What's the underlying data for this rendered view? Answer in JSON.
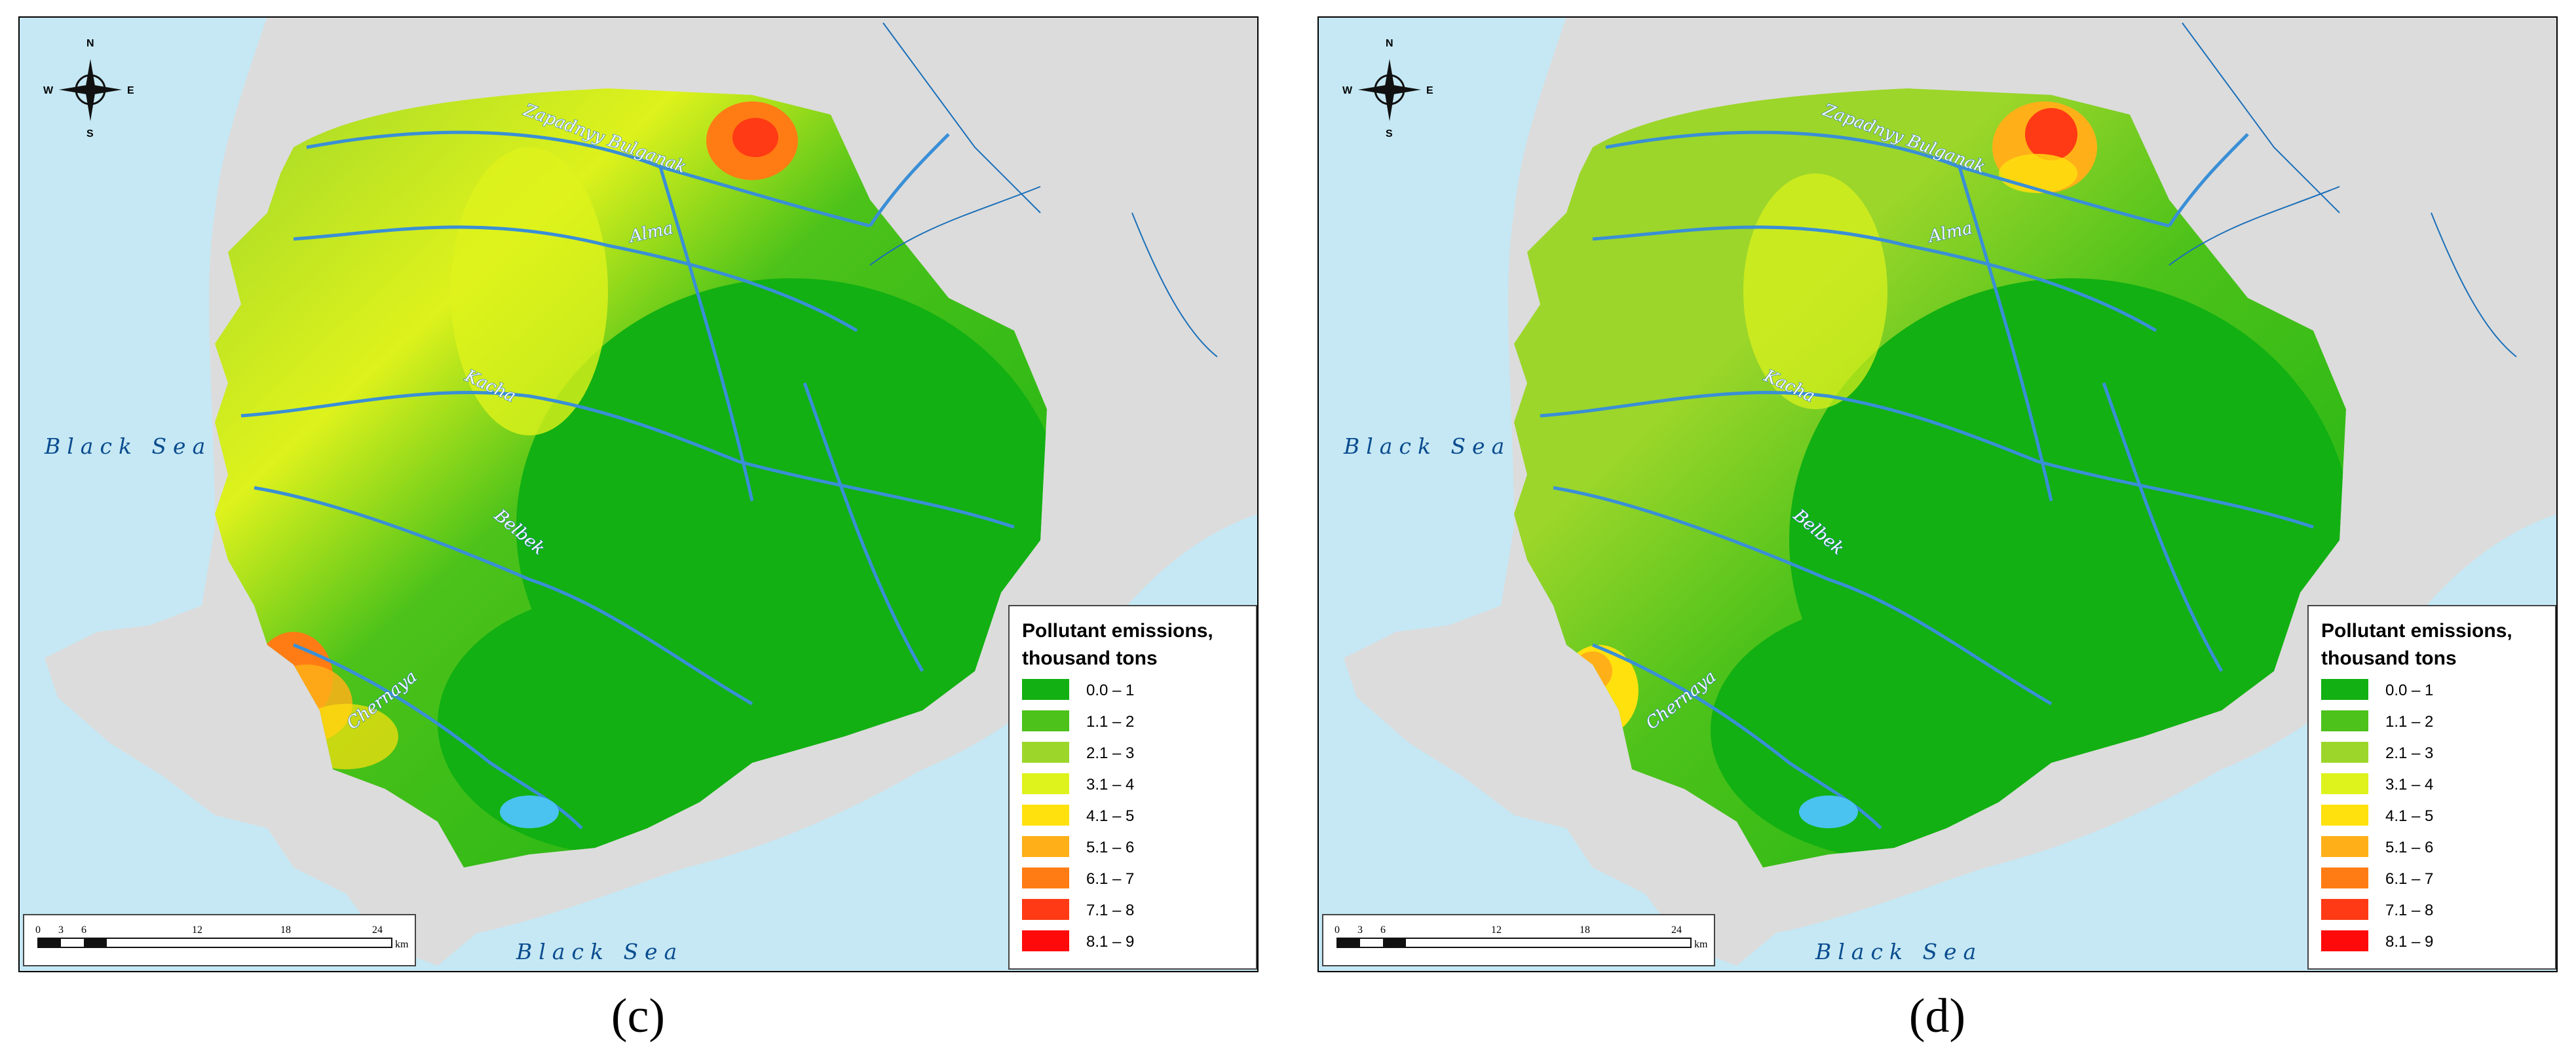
{
  "panels": [
    {
      "caption": "(c)",
      "sea_west": "Black Sea",
      "sea_south": "Black Sea",
      "rivers": [
        "Zapadnyy Bulganak",
        "Alma",
        "Kacha",
        "Belbek",
        "Chernaya"
      ],
      "compass": {
        "n": "N",
        "s": "S",
        "e": "E",
        "w": "W"
      },
      "scale_ticks": [
        "0",
        "3",
        "6",
        "12",
        "18",
        "24"
      ],
      "scale_unit": "km",
      "legend": {
        "title_line1": "Pollutant emissions,",
        "title_line2": "thousand tons",
        "items": [
          {
            "label": "0.0 – 1",
            "color": "#12b012"
          },
          {
            "label": "1.1 – 2",
            "color": "#4cc21a"
          },
          {
            "label": "2.1 – 3",
            "color": "#9cd62a"
          },
          {
            "label": "3.1 – 4",
            "color": "#def21c"
          },
          {
            "label": "4.1 – 5",
            "color": "#ffe10e"
          },
          {
            "label": "5.1 – 6",
            "color": "#ffb018"
          },
          {
            "label": "6.1 – 7",
            "color": "#ff7c14"
          },
          {
            "label": "7.1 – 8",
            "color": "#ff3a14"
          },
          {
            "label": "8.1 – 9",
            "color": "#ff0a0a"
          }
        ]
      }
    },
    {
      "caption": "(d)",
      "sea_west": "Black Sea",
      "sea_south": "Black Sea",
      "rivers": [
        "Zapadnyy Bulganak",
        "Alma",
        "Kacha",
        "Belbek",
        "Chernaya"
      ],
      "compass": {
        "n": "N",
        "s": "S",
        "e": "E",
        "w": "W"
      },
      "scale_ticks": [
        "0",
        "3",
        "6",
        "12",
        "18",
        "24"
      ],
      "scale_unit": "km",
      "legend": {
        "title_line1": "Pollutant emissions,",
        "title_line2": "thousand tons",
        "items": [
          {
            "label": "0.0 – 1",
            "color": "#12b012"
          },
          {
            "label": "1.1 – 2",
            "color": "#4cc21a"
          },
          {
            "label": "2.1 – 3",
            "color": "#9cd62a"
          },
          {
            "label": "3.1 – 4",
            "color": "#def21c"
          },
          {
            "label": "4.1 – 5",
            "color": "#ffe10e"
          },
          {
            "label": "5.1 – 6",
            "color": "#ffb018"
          },
          {
            "label": "6.1 – 7",
            "color": "#ff7c14"
          },
          {
            "label": "7.1 – 8",
            "color": "#ff3a14"
          },
          {
            "label": "8.1 – 9",
            "color": "#ff0a0a"
          }
        ]
      }
    }
  ]
}
